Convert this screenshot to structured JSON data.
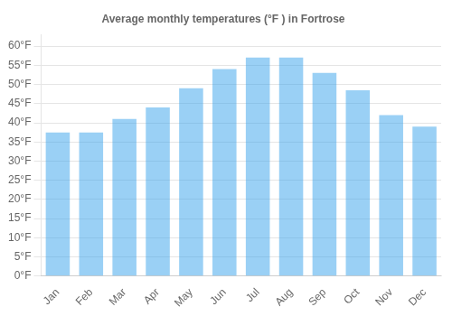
{
  "chart_data": {
    "type": "bar",
    "title": "Average monthly temperatures (°F ) in Fortrose",
    "categories": [
      "Jan",
      "Feb",
      "Mar",
      "Apr",
      "May",
      "Jun",
      "Jul",
      "Aug",
      "Sep",
      "Oct",
      "Nov",
      "Dec"
    ],
    "values": [
      37.5,
      37.5,
      41.0,
      44.0,
      49.0,
      54.0,
      57.0,
      57.0,
      53.0,
      48.5,
      42.0,
      39.0
    ],
    "ylim": [
      0,
      63
    ],
    "yticks": [
      {
        "value": 0,
        "label": "0°F"
      },
      {
        "value": 5,
        "label": "5°F"
      },
      {
        "value": 10,
        "label": "10°F"
      },
      {
        "value": 15,
        "label": "15°F"
      },
      {
        "value": 20,
        "label": "20°F"
      },
      {
        "value": 25,
        "label": "25°F"
      },
      {
        "value": 30,
        "label": "30°F"
      },
      {
        "value": 35,
        "label": "35°F"
      },
      {
        "value": 40,
        "label": "40°F"
      },
      {
        "value": 45,
        "label": "45°F"
      },
      {
        "value": 50,
        "label": "50°F"
      },
      {
        "value": 55,
        "label": "55°F"
      },
      {
        "value": 60,
        "label": "60°F"
      }
    ],
    "grid": true
  }
}
